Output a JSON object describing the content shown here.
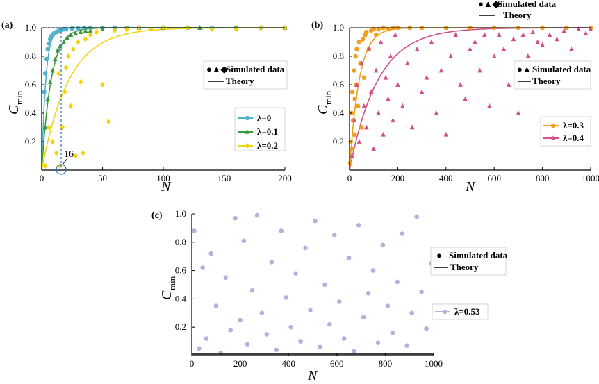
{
  "colors": {
    "lambda_0": "#4fb3c9",
    "lambda_0_1": "#3a9a3a",
    "lambda_0_2": "#f5d20e",
    "lambda_0_3": "#f0a020",
    "lambda_0_4": "#d0508a",
    "lambda_0_53": "#b7b0dc",
    "guide": "#2a6ebd"
  },
  "chart_data": [
    {
      "type": "scatter",
      "panel": "(a)",
      "xlabel": "N",
      "ylabel": "C",
      "ylabel_sub": "min",
      "xlim": [
        0,
        200
      ],
      "ylim": [
        0,
        1.0
      ],
      "xticks": [
        0,
        50,
        100,
        150,
        200
      ],
      "yticks": [
        "0.2",
        "0.4",
        "0.6",
        "0.8",
        "1.0"
      ],
      "legend_top": {
        "symbols": "●▲◆",
        "markers_label": "Simulated data",
        "line_label": "Theory"
      },
      "annotation": {
        "text": "16",
        "x": 16,
        "y": 0
      },
      "series": [
        {
          "name": "λ=0",
          "marker": "circle",
          "x": [
            2,
            3,
            4,
            5,
            6,
            7,
            8,
            9,
            10,
            12,
            14,
            16,
            18,
            20,
            25,
            30,
            35,
            40,
            50,
            60,
            70,
            80,
            100,
            120,
            140,
            160,
            180,
            200
          ],
          "y": [
            0.55,
            0.68,
            0.78,
            0.85,
            0.89,
            0.92,
            0.94,
            0.95,
            0.96,
            0.97,
            0.98,
            0.985,
            0.99,
            0.99,
            0.995,
            0.995,
            1.0,
            1.0,
            1.0,
            1.0,
            1.0,
            1.0,
            1.0,
            1.0,
            1.0,
            1.0,
            1.0,
            1.0
          ],
          "theory": {
            "k": 0.3
          }
        },
        {
          "name": "λ=0.1",
          "marker": "triangle",
          "x": [
            3,
            5,
            7,
            9,
            11,
            13,
            15,
            18,
            21,
            24,
            28,
            32,
            36,
            40,
            50,
            60,
            80,
            100,
            130,
            160,
            200
          ],
          "y": [
            0.3,
            0.5,
            0.62,
            0.7,
            0.78,
            0.84,
            0.87,
            0.9,
            0.93,
            0.95,
            0.96,
            0.97,
            0.98,
            0.98,
            0.99,
            0.99,
            1.0,
            1.0,
            1.0,
            1.0,
            1.0
          ],
          "theory": {
            "k": 0.13
          }
        },
        {
          "name": "λ=0.2",
          "marker": "diamond",
          "x": [
            3,
            6,
            9,
            12,
            14,
            15,
            17,
            19,
            20,
            22,
            24,
            26,
            28,
            30,
            32,
            34,
            36,
            40,
            45,
            50,
            55,
            60,
            70,
            80,
            90,
            100,
            120,
            140,
            160,
            180,
            200
          ],
          "y": [
            0.03,
            0.3,
            0.2,
            0.12,
            0.68,
            0.03,
            0.3,
            0.55,
            0.72,
            0.8,
            0.45,
            0.85,
            0.1,
            0.9,
            0.62,
            0.12,
            0.92,
            0.95,
            0.97,
            0.6,
            0.34,
            0.98,
            0.99,
            1.0,
            0.99,
            1.0,
            1.0,
            0.99,
            0.99,
            1.0,
            1.0
          ],
          "theory": {
            "k": 0.045
          }
        }
      ]
    },
    {
      "type": "scatter",
      "panel": "(b)",
      "xlabel": "N",
      "ylabel": "C",
      "ylabel_sub": "min",
      "xlim": [
        0,
        1000
      ],
      "ylim": [
        0,
        1.0
      ],
      "xticks": [
        0,
        200,
        400,
        600,
        800,
        1000
      ],
      "yticks": [
        "0.2",
        "0.4",
        "0.6",
        "0.8",
        "1.0"
      ],
      "legend_top": {
        "symbols": "●▲◆",
        "markers_label": "Simulated data",
        "line_label": "Theory"
      },
      "legend_mid": {
        "symbols": "●▲",
        "markers_label": "Simulated data",
        "line_label": "Theory"
      },
      "series": [
        {
          "name": "λ=0.3",
          "marker": "circle",
          "theory": {
            "k": 0.025
          },
          "x": [
            3,
            5,
            8,
            10,
            12,
            15,
            18,
            20,
            22,
            25,
            28,
            30,
            35,
            40,
            45,
            50,
            55,
            60,
            65,
            70,
            80,
            90,
            100,
            110,
            120,
            140,
            160,
            180,
            200,
            250,
            300,
            400,
            500,
            600,
            700,
            800,
            900,
            1000
          ],
          "y": [
            0.05,
            0.2,
            0.4,
            0.15,
            0.55,
            0.35,
            0.7,
            0.25,
            0.5,
            0.8,
            0.6,
            0.85,
            0.45,
            0.9,
            0.75,
            0.3,
            0.92,
            0.65,
            0.95,
            0.97,
            0.85,
            0.98,
            0.99,
            0.95,
            0.99,
            1.0,
            0.99,
            1.0,
            1.0,
            1.0,
            1.0,
            1.0,
            1.0,
            1.0,
            1.0,
            1.0,
            1.0,
            1.0
          ]
        },
        {
          "name": "λ=0.4",
          "marker": "triangle",
          "theory": {
            "k": 0.0085
          },
          "x": [
            10,
            20,
            30,
            40,
            50,
            60,
            70,
            80,
            90,
            100,
            110,
            120,
            130,
            140,
            150,
            160,
            170,
            180,
            190,
            200,
            220,
            240,
            260,
            280,
            300,
            320,
            340,
            360,
            380,
            400,
            420,
            440,
            460,
            480,
            500,
            520,
            540,
            560,
            580,
            600,
            620,
            640,
            660,
            680,
            700,
            720,
            740,
            760,
            780,
            800,
            830,
            860,
            890,
            920,
            950,
            980,
            1000
          ],
          "y": [
            0.1,
            0.35,
            0.6,
            0.2,
            0.75,
            0.45,
            0.3,
            0.85,
            0.55,
            0.15,
            0.7,
            0.4,
            0.9,
            0.25,
            0.65,
            0.5,
            0.8,
            0.35,
            0.95,
            0.6,
            0.45,
            0.75,
            0.3,
            0.85,
            0.55,
            0.65,
            0.9,
            0.4,
            0.7,
            0.25,
            0.8,
            0.95,
            0.6,
            0.5,
            0.85,
            0.9,
            0.7,
            0.95,
            0.45,
            0.8,
            0.95,
            0.85,
            0.6,
            0.92,
            0.4,
            0.95,
            0.8,
            0.97,
            0.9,
            0.88,
            0.95,
            0.92,
            0.98,
            0.85,
            0.99,
            0.96,
            0.99
          ]
        }
      ]
    },
    {
      "type": "scatter",
      "panel": "(c)",
      "xlabel": "N",
      "ylabel": "C",
      "ylabel_sub": "min",
      "xlim": [
        0,
        1000
      ],
      "ylim": [
        0,
        1.0
      ],
      "xticks": [
        0,
        200,
        400,
        600,
        800,
        1000
      ],
      "yticks": [
        "0.2",
        "0.4",
        "0.6",
        "0.8",
        "1.0"
      ],
      "legend_top": {
        "symbols": "●",
        "markers_label": "Simulated data",
        "line_label": "Theory"
      },
      "series": [
        {
          "name": "λ=0.53",
          "marker": "circle",
          "x": [
            10,
            30,
            45,
            60,
            80,
            100,
            120,
            140,
            160,
            180,
            200,
            215,
            230,
            250,
            270,
            290,
            310,
            330,
            350,
            370,
            390,
            410,
            430,
            450,
            470,
            490,
            510,
            530,
            550,
            570,
            590,
            610,
            630,
            650,
            670,
            690,
            710,
            730,
            750,
            770,
            790,
            810,
            830,
            850,
            870,
            890,
            910,
            930,
            950,
            970,
            990
          ],
          "y": [
            0.88,
            0.05,
            0.62,
            0.12,
            0.72,
            0.35,
            0.02,
            0.55,
            0.18,
            0.97,
            0.25,
            0.81,
            0.08,
            0.46,
            0.99,
            0.3,
            0.15,
            0.66,
            0.04,
            0.88,
            0.41,
            0.2,
            0.58,
            0.1,
            0.76,
            0.32,
            0.95,
            0.06,
            0.5,
            0.22,
            0.85,
            0.38,
            0.12,
            0.69,
            0.03,
            0.92,
            0.27,
            0.44,
            0.6,
            0.09,
            0.78,
            0.35,
            0.16,
            0.52,
            0.86,
            0.07,
            0.3,
            0.98,
            0.45,
            0.19,
            0.65
          ]
        }
      ]
    }
  ]
}
